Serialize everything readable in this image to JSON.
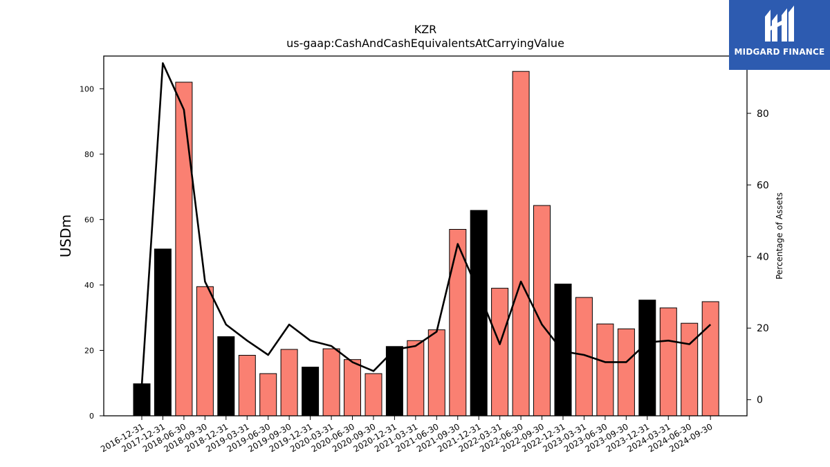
{
  "logo": {
    "text": "MIDGARD FINANCE",
    "icon": "mf-monogram-icon",
    "background": "#2d5bb0"
  },
  "chart_data": {
    "type": "bar",
    "title": "KZR",
    "subtitle": "us-gaap:CashAndCashEquivalentsAtCarryingValue",
    "ylabel": "USDm",
    "y2label": "Percentage of Assets",
    "ylim": [
      0,
      110
    ],
    "y2lim": [
      -4.5,
      96
    ],
    "yticks": [
      0,
      20,
      40,
      60,
      80,
      100
    ],
    "y2ticks": [
      0,
      20,
      40,
      60,
      80
    ],
    "grid": false,
    "categories": [
      "2016-12-31",
      "2017-12-31",
      "2018-06-30",
      "2018-09-30",
      "2018-12-31",
      "2019-03-31",
      "2019-06-30",
      "2019-09-30",
      "2019-12-31",
      "2020-03-31",
      "2020-06-30",
      "2020-09-30",
      "2020-12-31",
      "2021-03-31",
      "2021-06-30",
      "2021-09-30",
      "2021-12-31",
      "2022-03-31",
      "2022-06-30",
      "2022-09-30",
      "2022-12-31",
      "2023-03-31",
      "2023-06-30",
      "2023-09-30",
      "2023-12-31",
      "2024-03-31",
      "2024-06-30",
      "2024-09-30"
    ],
    "series": [
      {
        "kind": "bar",
        "values": [
          9.8,
          51.0,
          102.0,
          39.5,
          24.2,
          18.5,
          12.9,
          20.3,
          14.9,
          20.5,
          17.2,
          12.9,
          21.2,
          23.0,
          26.3,
          57.0,
          62.8,
          39.0,
          105.3,
          64.3,
          40.3,
          36.2,
          28.1,
          26.6,
          35.4,
          33.0,
          28.3,
          34.9
        ],
        "annual_flags": [
          true,
          true,
          false,
          false,
          true,
          false,
          false,
          false,
          true,
          false,
          false,
          false,
          true,
          false,
          false,
          false,
          true,
          false,
          false,
          false,
          true,
          false,
          false,
          false,
          true,
          false,
          false,
          false
        ],
        "annual_color": "#000000",
        "quarter_color": "#fa8072"
      },
      {
        "kind": "line",
        "axis": "right",
        "color": "#000000",
        "values": [
          4.0,
          94.0,
          81.0,
          33.0,
          21.0,
          16.5,
          12.5,
          21.0,
          16.5,
          15.0,
          10.5,
          8.0,
          14.0,
          15.0,
          19.0,
          43.5,
          30.0,
          15.5,
          33.0,
          21.0,
          13.5,
          12.5,
          10.5,
          10.5,
          16.0,
          16.5,
          15.5,
          21.0
        ]
      }
    ]
  }
}
